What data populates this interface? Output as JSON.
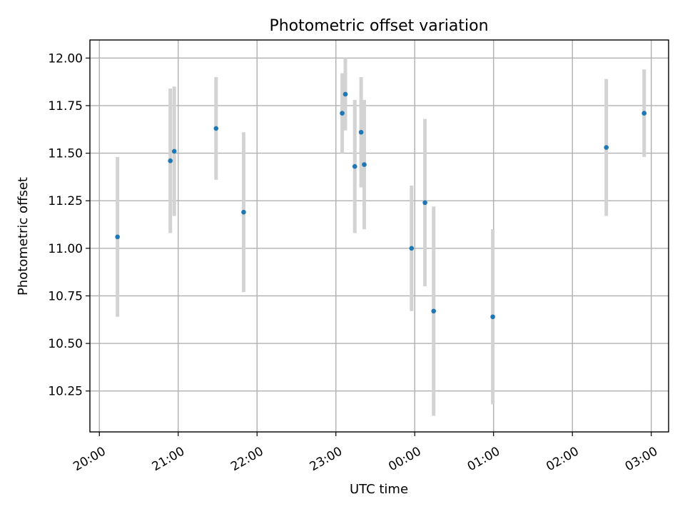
{
  "chart_data": {
    "type": "scatter",
    "title": "Photometric offset variation",
    "xlabel": "UTC time",
    "ylabel": "Photometric offset",
    "x_unit": "hours since 20:00 UTC",
    "xlim": [
      -0.12,
      7.22
    ],
    "ylim": [
      10.035,
      12.095
    ],
    "grid": true,
    "colors": {
      "point": "#1f77b4",
      "errorbar": "#d3d3d3"
    },
    "x_ticks": [
      {
        "value": 0,
        "label": "20:00"
      },
      {
        "value": 1,
        "label": "21:00"
      },
      {
        "value": 2,
        "label": "22:00"
      },
      {
        "value": 3,
        "label": "23:00"
      },
      {
        "value": 4,
        "label": "00:00"
      },
      {
        "value": 5,
        "label": "01:00"
      },
      {
        "value": 6,
        "label": "02:00"
      },
      {
        "value": 7,
        "label": "03:00"
      }
    ],
    "y_ticks": [
      {
        "value": 10.25,
        "label": "10.25"
      },
      {
        "value": 10.5,
        "label": "10.50"
      },
      {
        "value": 10.75,
        "label": "10.75"
      },
      {
        "value": 11.0,
        "label": "11.00"
      },
      {
        "value": 11.25,
        "label": "11.25"
      },
      {
        "value": 11.5,
        "label": "11.50"
      },
      {
        "value": 11.75,
        "label": "11.75"
      },
      {
        "value": 12.0,
        "label": "12.00"
      }
    ],
    "points": [
      {
        "x": 0.23,
        "y": 11.06,
        "err": 0.42
      },
      {
        "x": 0.9,
        "y": 11.46,
        "err": 0.38
      },
      {
        "x": 0.95,
        "y": 11.51,
        "err": 0.34
      },
      {
        "x": 1.48,
        "y": 11.63,
        "err": 0.27
      },
      {
        "x": 1.83,
        "y": 11.19,
        "err": 0.42
      },
      {
        "x": 3.08,
        "y": 11.71,
        "err": 0.21
      },
      {
        "x": 3.12,
        "y": 11.81,
        "err": 0.19
      },
      {
        "x": 3.24,
        "y": 11.43,
        "err": 0.35
      },
      {
        "x": 3.32,
        "y": 11.61,
        "err": 0.29
      },
      {
        "x": 3.36,
        "y": 11.44,
        "err": 0.34
      },
      {
        "x": 3.96,
        "y": 11.0,
        "err": 0.33
      },
      {
        "x": 4.13,
        "y": 11.24,
        "err": 0.44
      },
      {
        "x": 4.24,
        "y": 10.67,
        "err": 0.55
      },
      {
        "x": 4.99,
        "y": 10.64,
        "err": 0.46
      },
      {
        "x": 6.43,
        "y": 11.53,
        "err": 0.36
      },
      {
        "x": 6.91,
        "y": 11.71,
        "err": 0.23
      }
    ]
  }
}
